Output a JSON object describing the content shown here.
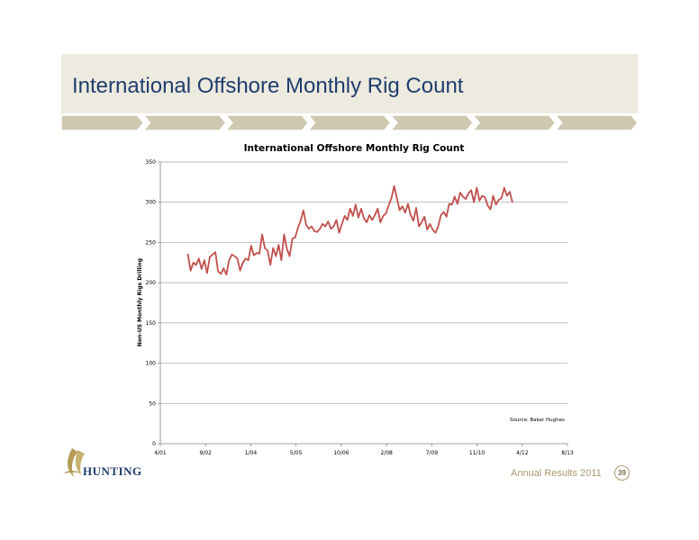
{
  "slide": {
    "title": "International Offshore Monthly Rig Count",
    "footer": "Annual Results 2011",
    "page_number": "39",
    "logo_text": "HUNTING"
  },
  "colors": {
    "title_text": "#1f3d6e",
    "band": "#edeadf",
    "arrow_bar": "#cfc8b0",
    "series": "#c0504d",
    "footer": "#a89a6e"
  },
  "chart_data": {
    "type": "line",
    "title": "International Offshore Monthly Rig Count",
    "ylabel": "Non-US Monthly Rigs Drilling",
    "xlabel": "",
    "ylim": [
      0,
      350
    ],
    "yticks": [
      0,
      50,
      100,
      150,
      200,
      250,
      300,
      350
    ],
    "xlim": [
      "2001-04",
      "2013-08"
    ],
    "xticks": [
      "4/01",
      "9/02",
      "1/04",
      "5/05",
      "10/06",
      "2/08",
      "7/09",
      "11/10",
      "4/12",
      "8/13"
    ],
    "grid": "horizontal",
    "legend": "none",
    "annotation": "Source: Baker Hughes",
    "series": [
      {
        "x": [
          "2002-02",
          "2002-03",
          "2002-04",
          "2002-05",
          "2002-06",
          "2002-07",
          "2002-08",
          "2002-09",
          "2002-10",
          "2002-11",
          "2002-12",
          "2003-01",
          "2003-02",
          "2003-03",
          "2003-04",
          "2003-05",
          "2003-06",
          "2003-07",
          "2003-08",
          "2003-09",
          "2003-10",
          "2003-11",
          "2003-12",
          "2004-01",
          "2004-02",
          "2004-03",
          "2004-04",
          "2004-05",
          "2004-06",
          "2004-07",
          "2004-08",
          "2004-09",
          "2004-10",
          "2004-11",
          "2004-12",
          "2005-01",
          "2005-02",
          "2005-03",
          "2005-04",
          "2005-05",
          "2005-06",
          "2005-07",
          "2005-08",
          "2005-09",
          "2005-10",
          "2005-11",
          "2005-12",
          "2006-01",
          "2006-02",
          "2006-03",
          "2006-04",
          "2006-05",
          "2006-06",
          "2006-07",
          "2006-08",
          "2006-09",
          "2006-10",
          "2006-11",
          "2006-12",
          "2007-01",
          "2007-02",
          "2007-03",
          "2007-04",
          "2007-05",
          "2007-06",
          "2007-07",
          "2007-08",
          "2007-09",
          "2007-10",
          "2007-11",
          "2007-12",
          "2008-01",
          "2008-02",
          "2008-03",
          "2008-04",
          "2008-05",
          "2008-06",
          "2008-07",
          "2008-08",
          "2008-09",
          "2008-10",
          "2008-11",
          "2008-12",
          "2009-01",
          "2009-02",
          "2009-03",
          "2009-04",
          "2009-05",
          "2009-06",
          "2009-07",
          "2009-08",
          "2009-09",
          "2009-10",
          "2009-11",
          "2009-12",
          "2010-01",
          "2010-02",
          "2010-03",
          "2010-04",
          "2010-05",
          "2010-06",
          "2010-07",
          "2010-08",
          "2010-09",
          "2010-10",
          "2010-11",
          "2010-12",
          "2011-01",
          "2011-02",
          "2011-03",
          "2011-04",
          "2011-05",
          "2011-06",
          "2011-07",
          "2011-08",
          "2011-09",
          "2011-10",
          "2011-11",
          "2011-12"
        ],
        "values": [
          236,
          215,
          225,
          222,
          230,
          217,
          228,
          212,
          232,
          235,
          238,
          214,
          211,
          218,
          210,
          228,
          235,
          233,
          230,
          215,
          225,
          230,
          228,
          246,
          234,
          237,
          236,
          260,
          243,
          240,
          222,
          243,
          233,
          247,
          228,
          260,
          242,
          233,
          255,
          256,
          268,
          277,
          290,
          272,
          267,
          270,
          264,
          263,
          267,
          273,
          270,
          276,
          267,
          270,
          278,
          262,
          273,
          283,
          278,
          292,
          283,
          297,
          281,
          292,
          280,
          275,
          284,
          278,
          284,
          292,
          275,
          283,
          286,
          296,
          305,
          320,
          305,
          290,
          295,
          287,
          298,
          284,
          277,
          293,
          270,
          275,
          282,
          266,
          273,
          266,
          262,
          270,
          284,
          288,
          282,
          298,
          297,
          307,
          298,
          312,
          307,
          304,
          311,
          315,
          300,
          318,
          302,
          308,
          306,
          296,
          291,
          308,
          297,
          303,
          305,
          318,
          308,
          313,
          300
        ]
      }
    ]
  }
}
